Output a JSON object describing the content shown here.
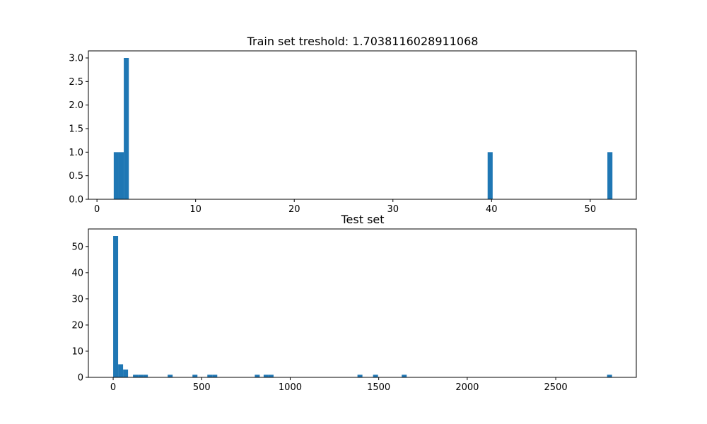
{
  "chart_data": [
    {
      "type": "bar",
      "title": "Train set treshold: 1.7038116028911068",
      "xlabel": "",
      "ylabel": "",
      "xlim": [
        -0.87,
        54.67
      ],
      "ylim": [
        0,
        3.15
      ],
      "xticks": [
        0,
        10,
        20,
        30,
        40,
        50
      ],
      "yticks": [
        0.0,
        0.5,
        1.0,
        1.5,
        2.0,
        2.5,
        3.0
      ],
      "ytick_labels": [
        "0.0",
        "0.5",
        "1.0",
        "1.5",
        "2.0",
        "2.5",
        "3.0"
      ],
      "grid": false,
      "color": "#1f77b4",
      "bins": [
        {
          "x0": 1.7,
          "x1": 2.21,
          "count": 1
        },
        {
          "x0": 2.21,
          "x1": 2.72,
          "count": 1
        },
        {
          "x0": 2.72,
          "x1": 3.23,
          "count": 3
        },
        {
          "x0": 39.6,
          "x1": 40.11,
          "count": 1
        },
        {
          "x0": 51.74,
          "x1": 52.25,
          "count": 1
        }
      ]
    },
    {
      "type": "bar",
      "title": "Test set",
      "xlabel": "",
      "ylabel": "",
      "xlim": [
        -140,
        2955
      ],
      "ylim": [
        0,
        56.7
      ],
      "xticks": [
        0,
        500,
        1000,
        1500,
        2000,
        2500
      ],
      "yticks": [
        0,
        10,
        20,
        30,
        40,
        50
      ],
      "ytick_labels": [
        "0",
        "10",
        "20",
        "30",
        "40",
        "50"
      ],
      "grid": false,
      "color": "#1f77b4",
      "bins": [
        {
          "x0": 0,
          "x1": 28,
          "count": 54
        },
        {
          "x0": 28,
          "x1": 56,
          "count": 5
        },
        {
          "x0": 56,
          "x1": 84,
          "count": 3
        },
        {
          "x0": 112,
          "x1": 140,
          "count": 1
        },
        {
          "x0": 140,
          "x1": 168,
          "count": 1
        },
        {
          "x0": 168,
          "x1": 196,
          "count": 1
        },
        {
          "x0": 308,
          "x1": 336,
          "count": 1
        },
        {
          "x0": 448,
          "x1": 476,
          "count": 1
        },
        {
          "x0": 532,
          "x1": 560,
          "count": 1
        },
        {
          "x0": 560,
          "x1": 588,
          "count": 1
        },
        {
          "x0": 800,
          "x1": 828,
          "count": 1
        },
        {
          "x0": 850,
          "x1": 878,
          "count": 1
        },
        {
          "x0": 878,
          "x1": 906,
          "count": 1
        },
        {
          "x0": 1380,
          "x1": 1408,
          "count": 1
        },
        {
          "x0": 1468,
          "x1": 1496,
          "count": 1
        },
        {
          "x0": 1630,
          "x1": 1658,
          "count": 1
        },
        {
          "x0": 2790,
          "x1": 2818,
          "count": 1
        }
      ]
    }
  ]
}
